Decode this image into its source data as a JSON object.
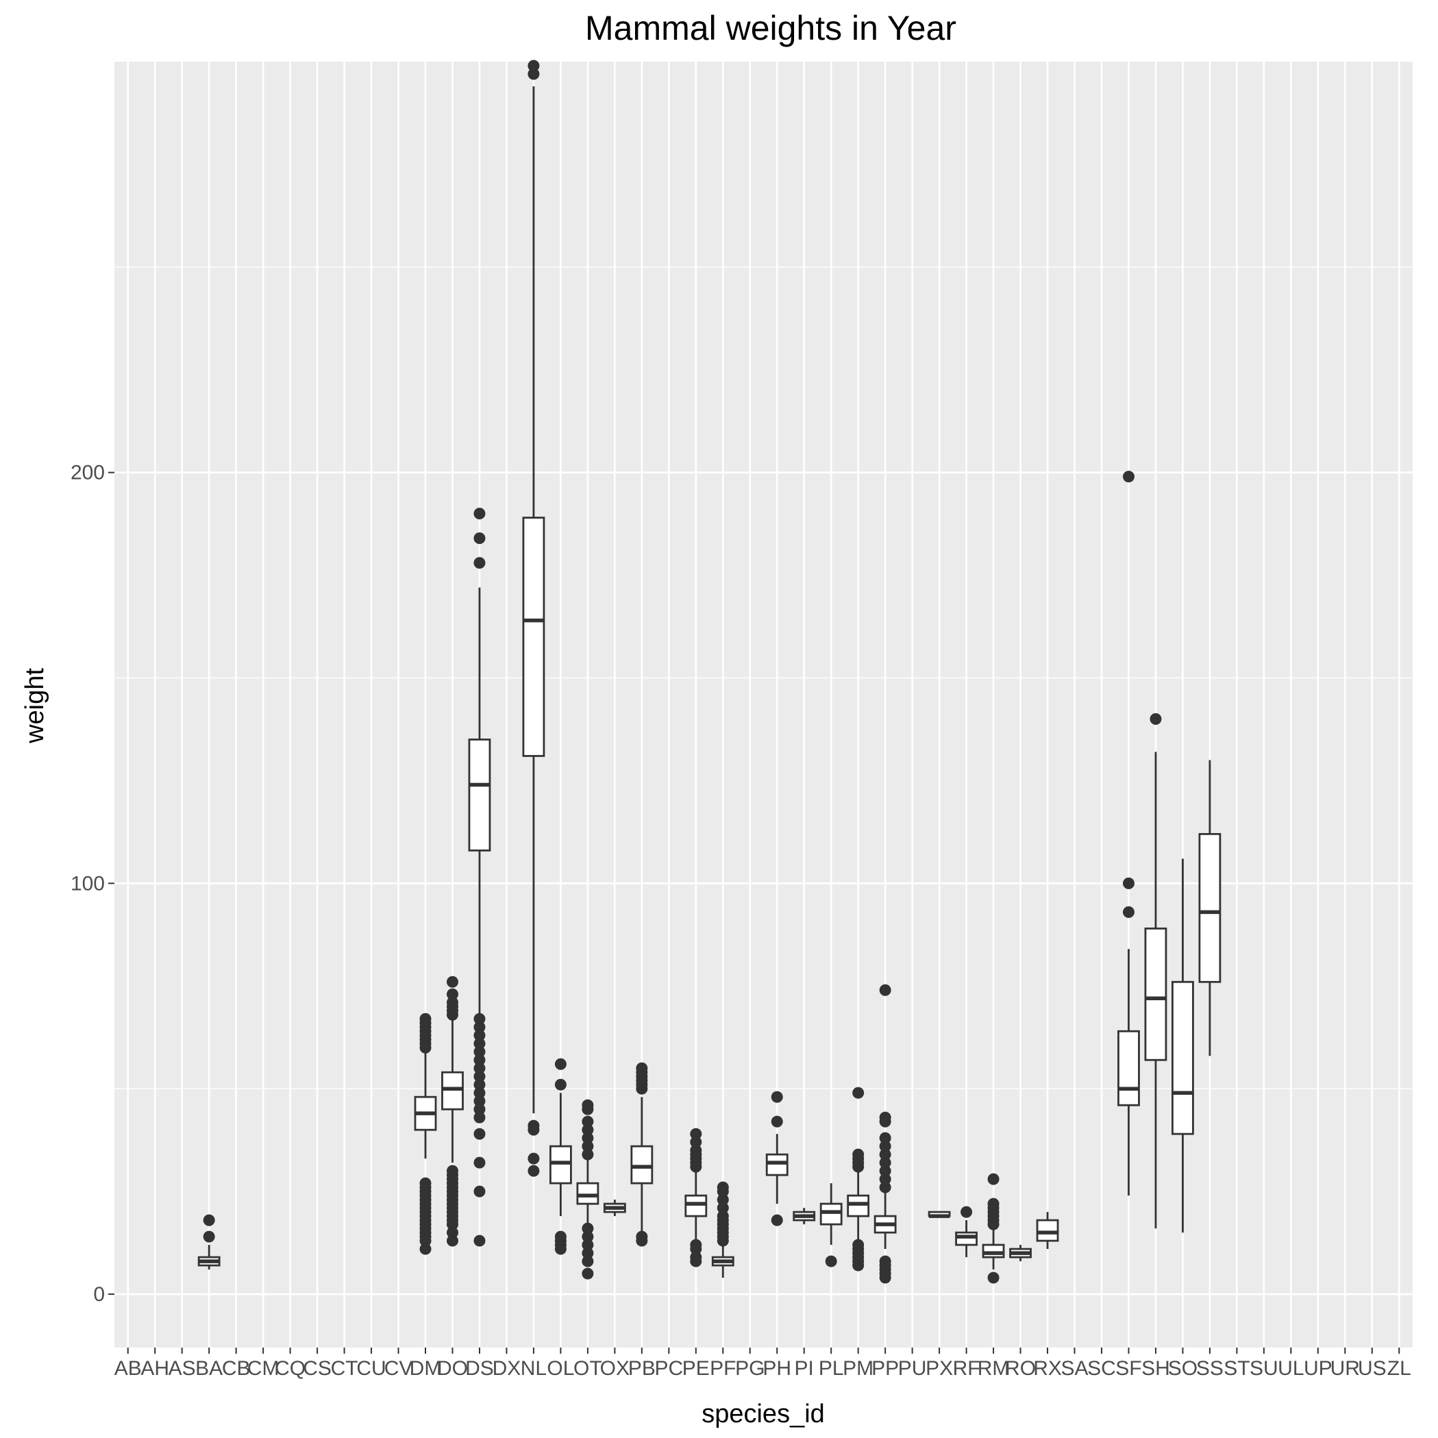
{
  "chart_data": {
    "type": "boxplot",
    "title": "Mammal weights in  Year",
    "xlabel": "species_id",
    "ylabel": "weight",
    "ylim": [
      -13,
      300
    ],
    "y_ticks": [
      0,
      100,
      200
    ],
    "grid": true,
    "categories": [
      "AB",
      "AH",
      "AS",
      "BA",
      "CB",
      "CM",
      "CQ",
      "CS",
      "CT",
      "CU",
      "CV",
      "DM",
      "DO",
      "DS",
      "DX",
      "NL",
      "OL",
      "OT",
      "OX",
      "PB",
      "PC",
      "PE",
      "PF",
      "PG",
      "PH",
      "PI",
      "PL",
      "PM",
      "PP",
      "PU",
      "PX",
      "RF",
      "RM",
      "RO",
      "RX",
      "SA",
      "SC",
      "SF",
      "SH",
      "SO",
      "SS",
      "ST",
      "SU",
      "UL",
      "UP",
      "UR",
      "US",
      "ZL"
    ],
    "boxes": [
      {
        "category": "BA",
        "q1": 7,
        "median": 8,
        "q3": 9,
        "whisker_low": 6,
        "whisker_high": 12,
        "outliers": [
          14,
          18
        ]
      },
      {
        "category": "DM",
        "q1": 40,
        "median": 44,
        "q3": 48,
        "whisker_low": 33,
        "whisker_high": 59,
        "outliers": [
          11,
          13,
          14,
          15,
          16,
          17,
          18,
          19,
          20,
          21,
          22,
          23,
          24,
          25,
          26,
          27,
          60,
          61,
          62,
          63,
          64,
          65,
          66,
          67
        ]
      },
      {
        "category": "DO",
        "q1": 45,
        "median": 50,
        "q3": 54,
        "whisker_low": 32,
        "whisker_high": 67,
        "outliers": [
          13,
          15,
          17,
          18,
          19,
          20,
          21,
          22,
          23,
          24,
          25,
          26,
          27,
          28,
          29,
          30,
          68,
          69,
          70,
          71,
          73,
          76
        ]
      },
      {
        "category": "DS",
        "q1": 108,
        "median": 124,
        "q3": 135,
        "whisker_low": 68,
        "whisker_high": 172,
        "outliers": [
          13,
          25,
          32,
          39,
          43,
          45,
          47,
          49,
          51,
          53,
          55,
          57,
          59,
          61,
          63,
          65,
          67,
          178,
          184,
          190
        ]
      },
      {
        "category": "NL",
        "q1": 131,
        "median": 164,
        "q3": 189,
        "whisker_low": 44,
        "whisker_high": 294,
        "outliers": [
          30,
          33,
          40,
          41,
          297,
          299
        ]
      },
      {
        "category": "OL",
        "q1": 27,
        "median": 32,
        "q3": 36,
        "whisker_low": 19,
        "whisker_high": 49,
        "outliers": [
          11,
          12,
          13,
          14,
          51,
          56
        ]
      },
      {
        "category": "OT",
        "q1": 22,
        "median": 24,
        "q3": 27,
        "whisker_low": 16,
        "whisker_high": 33,
        "outliers": [
          5,
          8,
          10,
          12,
          14,
          16,
          34,
          36,
          38,
          40,
          42,
          45,
          46
        ]
      },
      {
        "category": "OX",
        "q1": 20,
        "median": 21,
        "q3": 22,
        "whisker_low": 19,
        "whisker_high": 23,
        "outliers": []
      },
      {
        "category": "PB",
        "q1": 27,
        "median": 31,
        "q3": 36,
        "whisker_low": 15,
        "whisker_high": 48,
        "outliers": [
          13,
          14,
          50,
          51,
          52,
          53,
          54,
          55
        ]
      },
      {
        "category": "PE",
        "q1": 19,
        "median": 22,
        "q3": 24,
        "whisker_low": 13,
        "whisker_high": 30,
        "outliers": [
          8,
          9,
          11,
          12,
          31,
          32,
          33,
          34,
          35,
          37,
          39
        ]
      },
      {
        "category": "PF",
        "q1": 7,
        "median": 8,
        "q3": 9,
        "whisker_low": 4,
        "whisker_high": 12,
        "outliers": [
          13,
          14,
          15,
          16,
          17,
          18,
          19,
          21,
          23,
          25,
          26
        ]
      },
      {
        "category": "PH",
        "q1": 29,
        "median": 32,
        "q3": 34,
        "whisker_low": 22,
        "whisker_high": 39,
        "outliers": [
          18,
          42,
          48
        ]
      },
      {
        "category": "PI",
        "q1": 18,
        "median": 19,
        "q3": 20,
        "whisker_low": 17,
        "whisker_high": 21,
        "outliers": []
      },
      {
        "category": "PL",
        "q1": 17,
        "median": 20,
        "q3": 22,
        "whisker_low": 12,
        "whisker_high": 27,
        "outliers": [
          8
        ]
      },
      {
        "category": "PM",
        "q1": 19,
        "median": 22,
        "q3": 24,
        "whisker_low": 13,
        "whisker_high": 30,
        "outliers": [
          7,
          8,
          9,
          10,
          11,
          12,
          31,
          32,
          33,
          34,
          49
        ]
      },
      {
        "category": "PP",
        "q1": 15,
        "median": 17,
        "q3": 19,
        "whisker_low": 11,
        "whisker_high": 25,
        "outliers": [
          4,
          5,
          6,
          7,
          8,
          26,
          28,
          30,
          32,
          34,
          36,
          38,
          42,
          43,
          74
        ]
      },
      {
        "category": "PX",
        "q1": 19,
        "median": 19,
        "q3": 20,
        "whisker_low": 19,
        "whisker_high": 20,
        "outliers": []
      },
      {
        "category": "RF",
        "q1": 12,
        "median": 14,
        "q3": 15,
        "whisker_low": 9,
        "whisker_high": 18,
        "outliers": [
          20
        ]
      },
      {
        "category": "RM",
        "q1": 9,
        "median": 10,
        "q3": 12,
        "whisker_low": 6,
        "whisker_high": 16,
        "outliers": [
          4,
          17,
          18,
          19,
          20,
          21,
          22,
          28
        ]
      },
      {
        "category": "RO",
        "q1": 9,
        "median": 10,
        "q3": 11,
        "whisker_low": 8,
        "whisker_high": 12,
        "outliers": []
      },
      {
        "category": "RX",
        "q1": 13,
        "median": 15,
        "q3": 18,
        "whisker_low": 11,
        "whisker_high": 20,
        "outliers": []
      },
      {
        "category": "SF",
        "q1": 46,
        "median": 50,
        "q3": 64,
        "whisker_low": 24,
        "whisker_high": 84,
        "outliers": [
          93,
          100,
          199
        ]
      },
      {
        "category": "SH",
        "q1": 57,
        "median": 72,
        "q3": 89,
        "whisker_low": 16,
        "whisker_high": 132,
        "outliers": [
          140
        ]
      },
      {
        "category": "SO",
        "q1": 39,
        "median": 49,
        "q3": 76,
        "whisker_low": 15,
        "whisker_high": 106,
        "outliers": []
      },
      {
        "category": "SS",
        "q1": 76,
        "median": 93,
        "q3": 112,
        "whisker_low": 58,
        "whisker_high": 130,
        "outliers": []
      }
    ]
  }
}
